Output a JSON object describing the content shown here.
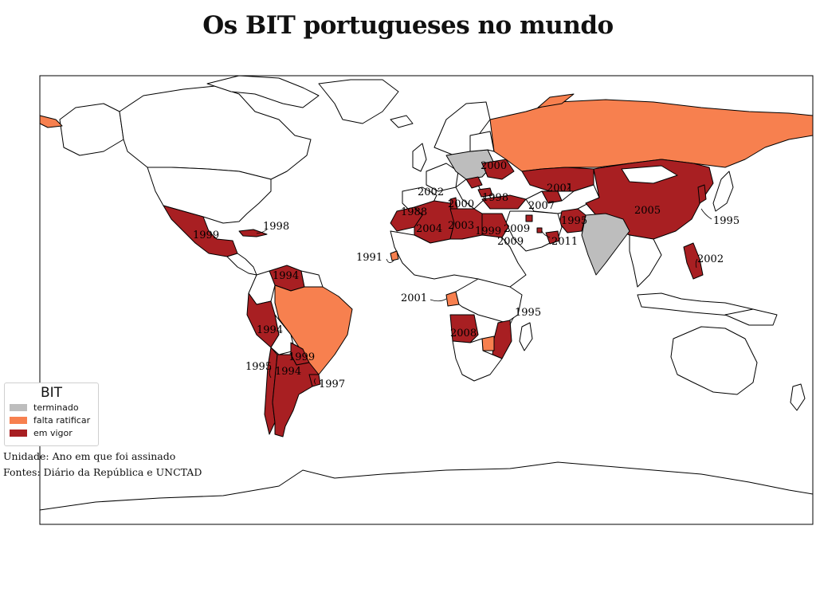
{
  "title": "Os BIT portugueses no mundo",
  "legend": {
    "title": "BIT",
    "items": [
      {
        "label": "terminado",
        "color": "#bdbdbd"
      },
      {
        "label": "falta ratificar",
        "color": "#f7804f"
      },
      {
        "label": "em vigor",
        "color": "#a81f22"
      }
    ]
  },
  "notes": {
    "unit": "Unidade: Ano em que foi assinado",
    "sources": "Fontes: Diário da República e UNCTAD"
  },
  "year_labels": [
    {
      "country": "Mexico",
      "year": "1999"
    },
    {
      "country": "Cuba",
      "year": "1998"
    },
    {
      "country": "Venezuela",
      "year": "1994"
    },
    {
      "country": "Peru",
      "year": "1994"
    },
    {
      "country": "Paraguay",
      "year": "1999"
    },
    {
      "country": "Chile",
      "year": "1995"
    },
    {
      "country": "Argentina",
      "year": "1994"
    },
    {
      "country": "Uruguay",
      "year": "1997"
    },
    {
      "country": "Cape Verde",
      "year": "1991"
    },
    {
      "country": "Morocco",
      "year": "1988"
    },
    {
      "country": "Algeria",
      "year": "2004"
    },
    {
      "country": "Tunisia",
      "year": "2002"
    },
    {
      "country": "Libya",
      "year": "2003"
    },
    {
      "country": "Egypt",
      "year": "1999"
    },
    {
      "country": "Gabon",
      "year": "2001"
    },
    {
      "country": "Angola",
      "year": "2008"
    },
    {
      "country": "Mozambique",
      "year": "1995"
    },
    {
      "country": "Croatia",
      "year": "2000"
    },
    {
      "country": "Ukraine",
      "year": "2000"
    },
    {
      "country": "Turkey",
      "year": "1998"
    },
    {
      "country": "Kazakhstan",
      "year": "2001"
    },
    {
      "country": "Uzbekistan",
      "year": "2007"
    },
    {
      "country": "Kuwait",
      "year": "2009"
    },
    {
      "country": "Qatar",
      "year": "2009"
    },
    {
      "country": "Oman",
      "year": "2011"
    },
    {
      "country": "Pakistan",
      "year": "1995"
    },
    {
      "country": "China",
      "year": "2005"
    },
    {
      "country": "South Korea",
      "year": "1995"
    },
    {
      "country": "Philippines",
      "year": "2002"
    },
    {
      "country": "Bulgaria",
      "year": "2000"
    }
  ]
}
